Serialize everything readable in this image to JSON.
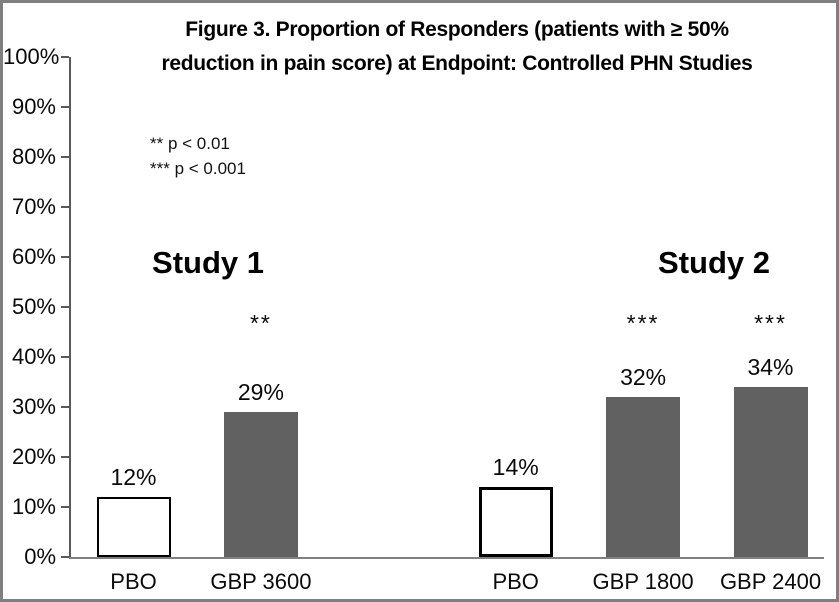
{
  "figure": {
    "title_lines": [
      "Figure 3. Proportion of Responders (patients with ≥ 50%",
      "reduction in pain score) at Endpoint: Controlled PHN Studies"
    ]
  },
  "chart_data": {
    "type": "bar",
    "title": "Figure 3. Proportion of Responders (patients with ≥ 50% reduction in pain score) at Endpoint: Controlled PHN Studies",
    "xlabel": "",
    "ylabel": "",
    "ylim": [
      0,
      100
    ],
    "ytick_step": 10,
    "ytick_labels": [
      "0%",
      "10%",
      "20%",
      "30%",
      "40%",
      "50%",
      "60%",
      "70%",
      "80%",
      "90%",
      "100%"
    ],
    "grid": false,
    "legend": "none",
    "annotations": [
      "** p < 0.01",
      "*** p < 0.001"
    ],
    "categories": [
      "PBO",
      "GBP 3600",
      "PBO",
      "GBP 1800",
      "GBP 2400"
    ],
    "values": [
      12,
      29,
      14,
      32,
      34
    ],
    "bars": [
      {
        "category": "PBO",
        "value": 12,
        "label": "12%",
        "significance": "",
        "style": "outline"
      },
      {
        "category": "GBP 3600",
        "value": 29,
        "label": "29%",
        "significance": "**",
        "style": "filled"
      },
      {
        "category": "PBO",
        "value": 14,
        "label": "14%",
        "significance": "",
        "style": "outline"
      },
      {
        "category": "GBP 1800",
        "value": 32,
        "label": "32%",
        "significance": "***",
        "style": "filled"
      },
      {
        "category": "GBP 2400",
        "value": 34,
        "label": "34%",
        "significance": "***",
        "style": "filled"
      }
    ],
    "groups": [
      {
        "label": "Study 1",
        "categories": [
          "PBO",
          "GBP 3600"
        ]
      },
      {
        "label": "Study 2",
        "categories": [
          "PBO",
          "GBP 1800",
          "GBP 2400"
        ]
      }
    ],
    "colors": {
      "filled_bar": "#616161",
      "outline_bar_fill": "#ffffff",
      "outline_bar_border": "#000000",
      "axis_line": "#808080",
      "text": "#000000",
      "frame_border": "#7f7f7f"
    }
  }
}
